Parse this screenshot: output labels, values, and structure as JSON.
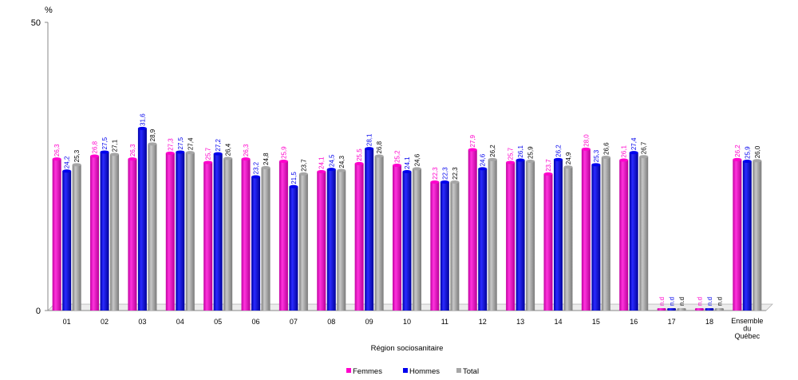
{
  "chart_data": {
    "type": "bar",
    "y_unit": "%",
    "xlabel": "Région sociosanitaire",
    "ylim": [
      0,
      50
    ],
    "y_ticks": [
      "0",
      "50"
    ],
    "grid": false,
    "legend_position": "bottom",
    "categories": [
      "01",
      "02",
      "03",
      "04",
      "05",
      "06",
      "07",
      "08",
      "09",
      "10",
      "11",
      "12",
      "13",
      "14",
      "15",
      "16",
      "17",
      "18",
      "Ensemble du Québec"
    ],
    "series": [
      {
        "name": "Femmes",
        "color": "#ff00cc",
        "values": [
          26.3,
          26.8,
          26.3,
          27.3,
          25.7,
          26.3,
          25.9,
          24.1,
          25.5,
          25.2,
          22.3,
          27.9,
          25.7,
          23.7,
          28.0,
          26.1,
          null,
          null,
          26.2
        ],
        "labels": [
          "26,3",
          "26,8",
          "26,3",
          "27,3",
          "25,7",
          "26,3",
          "25,9",
          "24,1",
          "25,5",
          "25,2",
          "22,3",
          "27,9",
          "25,7",
          "23,7",
          "28,0",
          "26,1",
          "n.d",
          "n.d",
          "26,2"
        ]
      },
      {
        "name": "Hommes",
        "color": "#0000ee",
        "values": [
          24.2,
          27.5,
          31.6,
          27.5,
          27.2,
          23.2,
          21.5,
          24.5,
          28.1,
          24.1,
          22.3,
          24.6,
          26.1,
          26.2,
          25.3,
          27.4,
          null,
          null,
          25.9
        ],
        "labels": [
          "24,2",
          "27,5",
          "31,6",
          "27,5",
          "27,2",
          "23,2",
          "21,5",
          "24,5",
          "28,1",
          "24,1",
          "22,3",
          "24,6",
          "26,1",
          "26,2",
          "25,3",
          "27,4",
          "n.d",
          "n.d",
          "25,9"
        ]
      },
      {
        "name": "Total",
        "color": "#a6a6a6",
        "values": [
          25.3,
          27.1,
          28.9,
          27.4,
          26.4,
          24.8,
          23.7,
          24.3,
          26.8,
          24.6,
          22.3,
          26.2,
          25.9,
          24.9,
          26.6,
          26.7,
          null,
          null,
          26.0
        ],
        "labels": [
          "25,3",
          "27,1",
          "28,9",
          "27,4",
          "26,4",
          "24,8",
          "23,7",
          "24,3",
          "26,8",
          "24,6",
          "22,3",
          "26,2",
          "25,9",
          "24,9",
          "26,6",
          "26,7",
          "n.d",
          "n.d",
          "26,0"
        ]
      }
    ],
    "label_colors": [
      "#ff00cc",
      "#0000ee",
      "#000000"
    ]
  }
}
